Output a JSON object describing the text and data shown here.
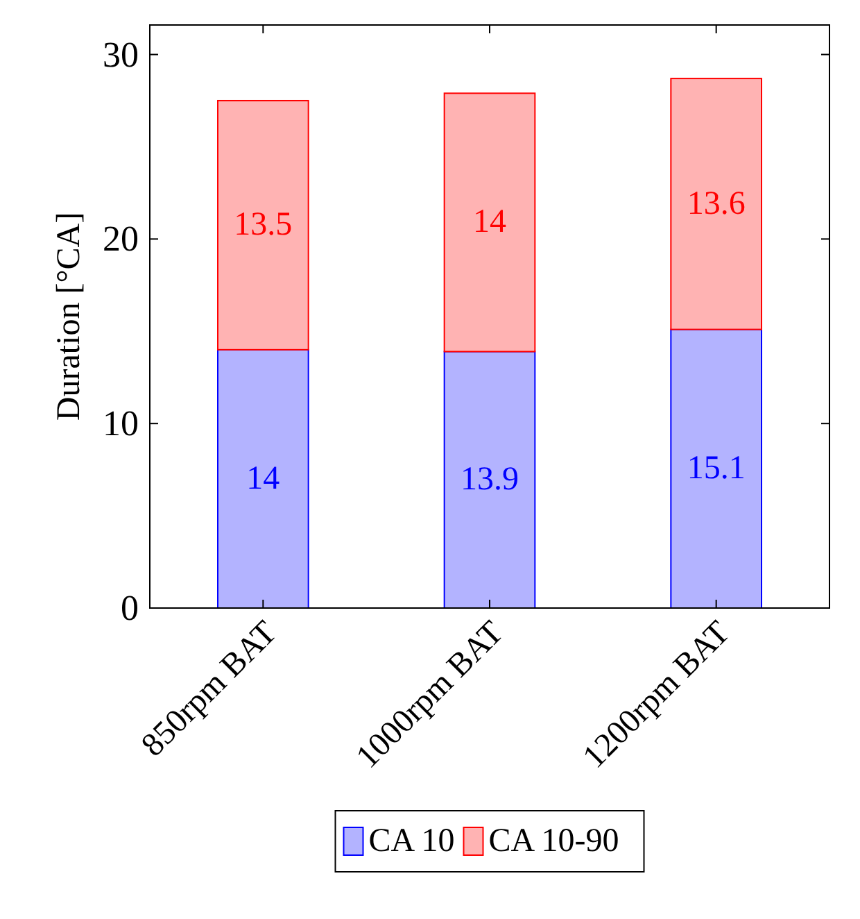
{
  "chart_data": {
    "type": "bar",
    "stacked": true,
    "ylabel": "Duration [°CA]",
    "categories": [
      "850rpm BAT",
      "1000rpm BAT",
      "1200rpm BAT"
    ],
    "series": [
      {
        "name": "CA 10",
        "color": "#b3b3ff",
        "values": [
          14,
          13.9,
          15.1
        ]
      },
      {
        "name": "CA 10-90",
        "color": "#ffb3b3",
        "values": [
          13.5,
          14,
          13.6
        ]
      }
    ],
    "ylim": [
      0,
      31.6
    ],
    "yticks": [
      0,
      10,
      20,
      30
    ],
    "data_labels": true,
    "legend": "bottom",
    "grid": false
  }
}
